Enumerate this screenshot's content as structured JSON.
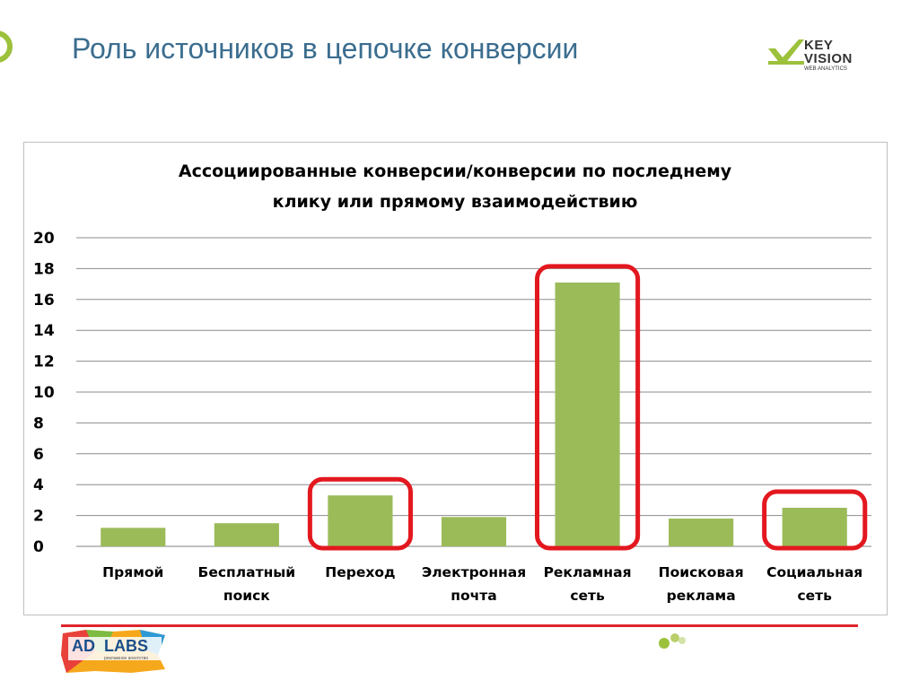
{
  "slide": {
    "title": "Роль источников в цепочке конверсии"
  },
  "logos": {
    "keyvision": {
      "line1": "KEY",
      "line2": "VISION",
      "line3": "WEB ANALYTICS"
    },
    "adlabs": {
      "part1": "AD",
      "part2": "LABS",
      "tagline": "рекламное агентство"
    }
  },
  "colors": {
    "bar": "#9bbb59",
    "highlight": "#e3181f",
    "title": "#3b6d8f",
    "divider": "#e0242b"
  },
  "chart_data": {
    "type": "bar",
    "title": "Ассоциированные конверсии/конверсии по последнему клику или прямому взаимодействию",
    "title_lines": [
      "Ассоциированные конверсии/конверсии по последнему",
      "клику или прямому взаимодействию"
    ],
    "categories": [
      [
        "Прямой"
      ],
      [
        "Бесплатный",
        "поиск"
      ],
      [
        "Переход"
      ],
      [
        "Электронная",
        "почта"
      ],
      [
        "Рекламная",
        "сеть"
      ],
      [
        "Поисковая",
        "реклама"
      ],
      [
        "Социальная",
        "сеть"
      ]
    ],
    "values": [
      1.2,
      1.5,
      3.3,
      1.9,
      17.1,
      1.8,
      2.5
    ],
    "highlighted": [
      false,
      false,
      true,
      false,
      true,
      false,
      true
    ],
    "ylim": [
      0,
      20
    ],
    "yticks": [
      0,
      2,
      4,
      6,
      8,
      10,
      12,
      14,
      16,
      18,
      20
    ],
    "grid": true,
    "legend": "none",
    "xlabel": "",
    "ylabel": ""
  }
}
